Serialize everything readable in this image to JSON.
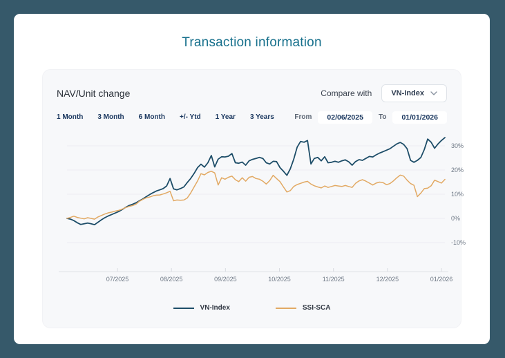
{
  "page": {
    "title": "Transaction information"
  },
  "panel": {
    "heading": "NAV/Unit change",
    "compare_label": "Compare with",
    "compare_value": "VN-Index",
    "periods": [
      "1 Month",
      "3 Month",
      "6 Month",
      "+/- Ytd",
      "1 Year",
      "3 Years"
    ],
    "from_label": "From",
    "from_value": "02/06/2025",
    "to_label": "To",
    "to_value": "01/01/2026"
  },
  "colors": {
    "background": "#36596a",
    "card": "#ffffff",
    "panel": "#f7f8fa",
    "title": "#17708c",
    "accent_navy": "#19365e",
    "line_vn_index": "#1d4d68",
    "line_ssi_sca": "#e2a963",
    "gridline": "#ececf1",
    "axis_line": "#dfe2e7",
    "axis_text": "#6e7885"
  },
  "chart_data": {
    "type": "line",
    "title": "NAV/Unit change",
    "unit": "percent",
    "grid": true,
    "legend_position": "bottom",
    "x_range": [
      "02/06/2025",
      "01/01/2026"
    ],
    "x_tick_labels": [
      "07/2025",
      "08/2025",
      "09/2025",
      "10/2025",
      "11/2025",
      "12/2025",
      "01/2026"
    ],
    "y_ticks": [
      30,
      20,
      10,
      0,
      -10
    ],
    "y_tick_labels": [
      "30%",
      "20%",
      "10%",
      "0%",
      "-10%"
    ],
    "ylim": [
      -22,
      36
    ],
    "series": [
      {
        "name": "VN-Index",
        "color": "#1d4d68",
        "values": [
          0,
          -0.3,
          -0.9,
          -1.8,
          -2.5,
          -2.2,
          -1.9,
          -2.2,
          -2.6,
          -1.6,
          -0.6,
          0.3,
          1,
          1.6,
          2.2,
          2.8,
          3.6,
          4.5,
          5.3,
          5.8,
          6.4,
          7.2,
          8,
          8.9,
          9.8,
          10.6,
          11.3,
          11.8,
          12.3,
          13.4,
          16.5,
          12.2,
          11.8,
          12.3,
          13,
          14.8,
          16.5,
          18.6,
          21,
          22.4,
          21.2,
          23,
          26,
          21.3,
          24.5,
          25.5,
          25.4,
          25.7,
          26.8,
          23,
          22.8,
          23.3,
          22,
          23.8,
          24.4,
          24.8,
          25.2,
          24.8,
          23,
          22.5,
          23.6,
          23.5,
          21,
          19.5,
          17.8,
          20.5,
          24.5,
          29.5,
          31.8,
          31.5,
          32.2,
          22.5,
          24.8,
          25.2,
          23.8,
          25.5,
          23,
          23.2,
          23.6,
          23.2,
          23.8,
          24.2,
          23.4,
          22,
          23.5,
          24.3,
          24,
          24.8,
          25.6,
          25.4,
          26.3,
          27,
          27.6,
          28.2,
          28.8,
          29.8,
          30.8,
          31.4,
          30.6,
          28.8,
          24,
          23.2,
          24,
          25.2,
          28.5,
          32.8,
          31.5,
          29,
          30.8,
          32.2,
          33.4
        ]
      },
      {
        "name": "SSI-SCA",
        "color": "#e2a963",
        "values": [
          0,
          0.4,
          0.9,
          0.4,
          0.1,
          -0.2,
          0.3,
          0,
          -0.3,
          0.6,
          1.2,
          1.8,
          2.3,
          2.6,
          3,
          3.3,
          3.8,
          4.4,
          4.9,
          5.3,
          5.8,
          7,
          7.8,
          8.5,
          8.8,
          9.3,
          9.6,
          9.7,
          10.1,
          10.6,
          11.2,
          7.3,
          7.6,
          7.5,
          7.6,
          8.4,
          10.5,
          13,
          15.5,
          18.5,
          18,
          19,
          19.5,
          18.8,
          13.8,
          16.8,
          16.2,
          17,
          17.5,
          16,
          15.2,
          16.8,
          15.4,
          17,
          17.3,
          16.5,
          16.2,
          15.4,
          14.2,
          15.6,
          17.8,
          16.5,
          15.2,
          13,
          10.9,
          11.5,
          13.2,
          14,
          14.5,
          15,
          15.3,
          14.2,
          13.5,
          13,
          12.6,
          13.4,
          12.8,
          13.2,
          13.6,
          13.4,
          13.2,
          13.6,
          13.2,
          12.8,
          14.5,
          15.5,
          16,
          15.4,
          14.6,
          13.8,
          14.6,
          15,
          14.8,
          13.9,
          14.4,
          15.5,
          16.8,
          17.9,
          17.5,
          15.8,
          14.4,
          13.7,
          9,
          10.5,
          12.3,
          12.5,
          13.5,
          15.8,
          15.2,
          14.6,
          16.1
        ]
      }
    ]
  }
}
